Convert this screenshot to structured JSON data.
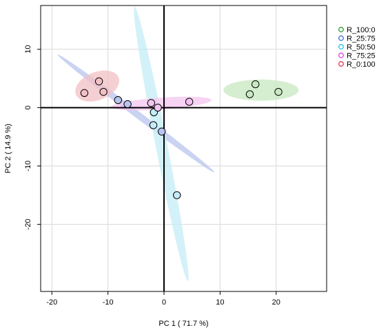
{
  "chart_data": {
    "type": "scatter",
    "title": "",
    "xlabel": "PC 1 ( 71.7 %)",
    "ylabel": "PC 2 ( 14.9 %)",
    "xlim": [
      -22,
      29
    ],
    "ylim": [
      -31.5,
      17.5
    ],
    "xticks": [
      -20,
      -10,
      0,
      10,
      20
    ],
    "yticks": [
      -20,
      -10,
      0,
      10
    ],
    "grid": true,
    "legend_position": "top-right",
    "series": [
      {
        "name": "R_100:0",
        "color": "#2ca02c",
        "ellipse_fill": "#c8e8c0",
        "points": [
          {
            "x": 16.3,
            "y": 4.0
          },
          {
            "x": 15.3,
            "y": 2.3
          },
          {
            "x": 20.4,
            "y": 2.7
          }
        ],
        "ellipse": {
          "cx": 17.3,
          "cy": 3.0,
          "rx": 6.7,
          "ry": 1.9,
          "angle": 0
        }
      },
      {
        "name": "R_25:75",
        "color": "#3a6fd8",
        "ellipse_fill": "#b8c4ee",
        "points": [
          {
            "x": -8.2,
            "y": 1.3
          },
          {
            "x": -6.5,
            "y": 0.6
          },
          {
            "x": -0.4,
            "y": -4.1
          }
        ],
        "ellipse": {
          "cx": -5.0,
          "cy": -1.0,
          "rx": 17.5,
          "ry": 0.6,
          "angle": -37
        }
      },
      {
        "name": "R_50:50",
        "color": "#22c4e6",
        "ellipse_fill": "#c4ecf6",
        "points": [
          {
            "x": -1.8,
            "y": -0.8
          },
          {
            "x": -1.9,
            "y": -3.0
          },
          {
            "x": 2.3,
            "y": -15.0
          }
        ],
        "ellipse": {
          "cx": -0.5,
          "cy": -6.2,
          "rx": 25.0,
          "ry": 1.05,
          "angle": -79
        }
      },
      {
        "name": "R_75:25",
        "color": "#e040e8",
        "ellipse_fill": "#f4c4f0",
        "points": [
          {
            "x": -2.3,
            "y": 0.8
          },
          {
            "x": -1.1,
            "y": 0.0
          },
          {
            "x": 4.5,
            "y": 1.0
          }
        ],
        "ellipse": {
          "cx": -0.5,
          "cy": 0.7,
          "rx": 9.0,
          "ry": 1.05,
          "angle": 4
        }
      },
      {
        "name": "R_0:100",
        "color": "#e6304e",
        "ellipse_fill": "#f2c0c4",
        "points": [
          {
            "x": -14.2,
            "y": 2.5
          },
          {
            "x": -11.6,
            "y": 4.5
          },
          {
            "x": -10.8,
            "y": 2.7
          }
        ],
        "ellipse": {
          "cx": -11.9,
          "cy": 3.7,
          "rx": 4.1,
          "ry": 2.5,
          "angle": 22
        }
      }
    ]
  }
}
